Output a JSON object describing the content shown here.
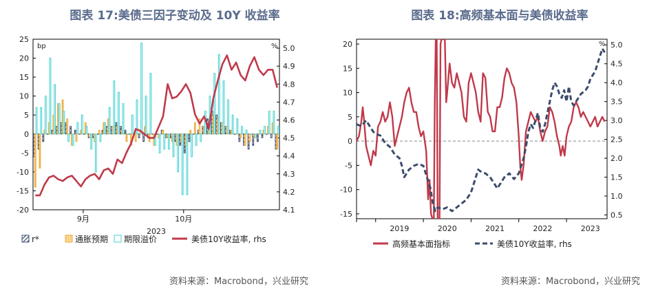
{
  "chart_data": [
    {
      "type": "bar",
      "title": "图表 17:美债三因子变动及 10Y 收益率",
      "y_unit": "bp",
      "y2_unit": "%",
      "ylim": [
        -20,
        25
      ],
      "yticks": [
        -20,
        -15,
        -10,
        -5,
        0,
        5,
        10,
        15,
        20,
        25
      ],
      "y2lim": [
        4.1,
        5.05
      ],
      "y2ticks": [
        4.1,
        4.2,
        4.3,
        4.4,
        4.5,
        4.6,
        4.7,
        4.8,
        4.9,
        5.0
      ],
      "x_month_labels": [
        {
          "label": "9月",
          "index": 11
        },
        {
          "label": "10月",
          "index": 33
        }
      ],
      "x_year_label": "2023",
      "series": [
        {
          "name": "r*",
          "type": "bar",
          "color": "#3b4b6b",
          "values": [
            -6,
            -4,
            -2,
            0,
            1,
            2,
            3,
            3,
            2,
            1,
            0,
            0,
            -1,
            -1,
            0,
            1,
            2,
            2,
            3,
            2,
            1,
            0,
            0,
            -1,
            -2,
            -1,
            0,
            0,
            1,
            -1,
            -1,
            -2,
            -3,
            -5,
            -2,
            0,
            1,
            2,
            4,
            6,
            5,
            3,
            2,
            1,
            0,
            -2,
            -3,
            -4,
            -3,
            -2,
            -1,
            0,
            -1,
            -4
          ]
        },
        {
          "name": "通胀预期",
          "type": "bar",
          "color": "#f0a830",
          "values": [
            -14,
            -9,
            1,
            3,
            5,
            8,
            9,
            4,
            -3,
            -2,
            1,
            3,
            -1,
            -2,
            1,
            3,
            4,
            2,
            2,
            1,
            -2,
            -3,
            -2,
            1,
            2,
            -2,
            -3,
            -1,
            1,
            -1,
            -2,
            -3,
            -2,
            -3,
            1,
            3,
            4,
            2,
            1,
            5,
            4,
            3,
            2,
            1,
            0,
            -1,
            -3,
            -2,
            -1,
            0,
            1,
            2,
            3,
            -4
          ]
        },
        {
          "name": "期限溢价",
          "type": "bar",
          "color": "#40d0d0",
          "values": [
            7,
            7,
            10,
            20,
            13,
            8,
            6,
            -2,
            -3,
            3,
            5,
            2,
            -4,
            -10,
            -2,
            3,
            7,
            14,
            11,
            8,
            0,
            5,
            9,
            24,
            10,
            16,
            -3,
            -5,
            -4,
            -4,
            -6,
            -10,
            -16,
            -16,
            -6,
            -3,
            -2,
            6,
            10,
            16,
            21,
            14,
            9,
            5,
            4,
            2,
            1,
            0,
            -1,
            1,
            2,
            6,
            6,
            2
          ]
        },
        {
          "name": "美债10Y收益率, rhs",
          "type": "line",
          "axis": "rhs",
          "color": "#c0394a",
          "values": [
            4.18,
            4.18,
            4.24,
            4.28,
            4.29,
            4.27,
            4.26,
            4.28,
            4.29,
            4.26,
            4.23,
            4.27,
            4.29,
            4.3,
            4.27,
            4.32,
            4.33,
            4.3,
            4.38,
            4.36,
            4.42,
            4.47,
            4.55,
            4.54,
            4.52,
            4.5,
            4.5,
            4.56,
            4.62,
            4.8,
            4.72,
            4.73,
            4.76,
            4.8,
            4.75,
            4.63,
            4.58,
            4.62,
            4.55,
            4.72,
            4.82,
            4.91,
            4.96,
            4.88,
            4.92,
            4.85,
            4.82,
            4.9,
            4.95,
            4.88,
            4.85,
            4.88,
            4.88,
            4.78
          ]
        }
      ],
      "source": "资料来源：Macrobond，兴业研究"
    },
    {
      "type": "line",
      "title": "图表 18:高频基本面与美债收益率",
      "y2_unit": "%",
      "ylim": [
        -16,
        21
      ],
      "yticks": [
        -15,
        -10,
        -5,
        0,
        5,
        10,
        15,
        20
      ],
      "y2lim": [
        0.4,
        5.15
      ],
      "y2ticks": [
        0.5,
        1.0,
        1.5,
        2.0,
        2.5,
        3.0,
        3.5,
        4.0,
        4.5,
        5.0
      ],
      "xlim": [
        2018.6,
        2023.85
      ],
      "xticks": [
        2019,
        2020,
        2021,
        2022,
        2023
      ],
      "series": [
        {
          "name": "高频基本面指标",
          "axis": "lhs",
          "color": "#c0394a",
          "style": "solid",
          "points": [
            [
              2018.6,
              0
            ],
            [
              2018.65,
              1
            ],
            [
              2018.7,
              4
            ],
            [
              2018.73,
              7
            ],
            [
              2018.76,
              4
            ],
            [
              2018.8,
              -1
            ],
            [
              2018.85,
              -3
            ],
            [
              2018.9,
              -5
            ],
            [
              2018.95,
              -2
            ],
            [
              2019.0,
              -3
            ],
            [
              2019.05,
              3
            ],
            [
              2019.1,
              4
            ],
            [
              2019.15,
              6
            ],
            [
              2019.2,
              4
            ],
            [
              2019.25,
              5
            ],
            [
              2019.3,
              8
            ],
            [
              2019.35,
              5
            ],
            [
              2019.4,
              -1
            ],
            [
              2019.45,
              1
            ],
            [
              2019.5,
              3
            ],
            [
              2019.55,
              5
            ],
            [
              2019.6,
              8
            ],
            [
              2019.65,
              10
            ],
            [
              2019.7,
              11
            ],
            [
              2019.75,
              8
            ],
            [
              2019.8,
              6
            ],
            [
              2019.85,
              6
            ],
            [
              2019.9,
              3
            ],
            [
              2019.95,
              1
            ],
            [
              2020.0,
              2
            ],
            [
              2020.03,
              0
            ],
            [
              2020.06,
              -2
            ],
            [
              2020.1,
              -12
            ],
            [
              2020.13,
              -8
            ],
            [
              2020.16,
              -15
            ],
            [
              2020.19,
              -16
            ],
            [
              2020.22,
              -16
            ],
            [
              2020.24,
              8
            ],
            [
              2020.26,
              21
            ],
            [
              2020.28,
              21
            ],
            [
              2020.3,
              -16
            ],
            [
              2020.32,
              -16
            ],
            [
              2020.34,
              -16
            ],
            [
              2020.36,
              20
            ],
            [
              2020.38,
              21
            ],
            [
              2020.4,
              21
            ],
            [
              2020.42,
              21
            ],
            [
              2020.45,
              21
            ],
            [
              2020.48,
              8
            ],
            [
              2020.5,
              10
            ],
            [
              2020.55,
              16
            ],
            [
              2020.6,
              12
            ],
            [
              2020.65,
              11
            ],
            [
              2020.7,
              14
            ],
            [
              2020.75,
              12
            ],
            [
              2020.8,
              10
            ],
            [
              2020.85,
              5
            ],
            [
              2020.9,
              4
            ],
            [
              2020.95,
              12
            ],
            [
              2021.0,
              14
            ],
            [
              2021.05,
              12
            ],
            [
              2021.1,
              10
            ],
            [
              2021.15,
              6
            ],
            [
              2021.2,
              4
            ],
            [
              2021.25,
              14
            ],
            [
              2021.3,
              13
            ],
            [
              2021.35,
              6
            ],
            [
              2021.4,
              5
            ],
            [
              2021.45,
              2
            ],
            [
              2021.5,
              2
            ],
            [
              2021.55,
              7
            ],
            [
              2021.6,
              7
            ],
            [
              2021.65,
              9
            ],
            [
              2021.7,
              13
            ],
            [
              2021.75,
              15
            ],
            [
              2021.8,
              14
            ],
            [
              2021.85,
              12
            ],
            [
              2021.9,
              11
            ],
            [
              2021.95,
              8
            ],
            [
              2022.0,
              1
            ],
            [
              2022.03,
              -5
            ],
            [
              2022.06,
              -8
            ],
            [
              2022.1,
              -5
            ],
            [
              2022.15,
              2
            ],
            [
              2022.2,
              4
            ],
            [
              2022.25,
              6
            ],
            [
              2022.3,
              5
            ],
            [
              2022.35,
              4
            ],
            [
              2022.4,
              5
            ],
            [
              2022.45,
              2
            ],
            [
              2022.5,
              0
            ],
            [
              2022.55,
              2
            ],
            [
              2022.6,
              3
            ],
            [
              2022.65,
              7
            ],
            [
              2022.7,
              6
            ],
            [
              2022.75,
              4
            ],
            [
              2022.8,
              1
            ],
            [
              2022.85,
              -1
            ],
            [
              2022.88,
              -3
            ],
            [
              2022.92,
              -1
            ],
            [
              2022.96,
              -3
            ],
            [
              2023.0,
              1
            ],
            [
              2023.05,
              3
            ],
            [
              2023.1,
              4
            ],
            [
              2023.15,
              7
            ],
            [
              2023.2,
              8
            ],
            [
              2023.25,
              7
            ],
            [
              2023.3,
              5
            ],
            [
              2023.35,
              6
            ],
            [
              2023.4,
              5
            ],
            [
              2023.45,
              4
            ],
            [
              2023.5,
              3
            ],
            [
              2023.55,
              4
            ],
            [
              2023.6,
              5
            ],
            [
              2023.65,
              3
            ],
            [
              2023.7,
              4
            ],
            [
              2023.75,
              5
            ],
            [
              2023.8,
              4
            ]
          ]
        },
        {
          "name": "美债10Y收益率, rhs",
          "axis": "rhs",
          "color": "#3b4b6b",
          "style": "dashed",
          "points": [
            [
              2018.6,
              2.9
            ],
            [
              2018.7,
              2.85
            ],
            [
              2018.8,
              3.0
            ],
            [
              2018.9,
              2.8
            ],
            [
              2018.95,
              2.7
            ],
            [
              2019.0,
              2.65
            ],
            [
              2019.1,
              2.6
            ],
            [
              2019.2,
              2.4
            ],
            [
              2019.3,
              2.3
            ],
            [
              2019.4,
              2.1
            ],
            [
              2019.5,
              2.0
            ],
            [
              2019.55,
              1.8
            ],
            [
              2019.6,
              1.5
            ],
            [
              2019.65,
              1.6
            ],
            [
              2019.7,
              1.7
            ],
            [
              2019.8,
              1.8
            ],
            [
              2019.9,
              1.85
            ],
            [
              2020.0,
              1.8
            ],
            [
              2020.05,
              1.6
            ],
            [
              2020.1,
              1.4
            ],
            [
              2020.15,
              1.2
            ],
            [
              2020.2,
              0.8
            ],
            [
              2020.25,
              0.6
            ],
            [
              2020.3,
              0.7
            ],
            [
              2020.4,
              0.65
            ],
            [
              2020.5,
              0.7
            ],
            [
              2020.6,
              0.6
            ],
            [
              2020.7,
              0.7
            ],
            [
              2020.8,
              0.8
            ],
            [
              2020.9,
              0.9
            ],
            [
              2021.0,
              1.1
            ],
            [
              2021.05,
              1.3
            ],
            [
              2021.1,
              1.5
            ],
            [
              2021.15,
              1.7
            ],
            [
              2021.2,
              1.65
            ],
            [
              2021.3,
              1.6
            ],
            [
              2021.4,
              1.5
            ],
            [
              2021.5,
              1.3
            ],
            [
              2021.55,
              1.2
            ],
            [
              2021.6,
              1.3
            ],
            [
              2021.7,
              1.5
            ],
            [
              2021.8,
              1.6
            ],
            [
              2021.9,
              1.45
            ],
            [
              2022.0,
              1.6
            ],
            [
              2022.05,
              1.8
            ],
            [
              2022.1,
              2.0
            ],
            [
              2022.15,
              2.3
            ],
            [
              2022.2,
              2.7
            ],
            [
              2022.25,
              2.9
            ],
            [
              2022.3,
              2.8
            ],
            [
              2022.35,
              3.0
            ],
            [
              2022.4,
              3.2
            ],
            [
              2022.45,
              2.8
            ],
            [
              2022.5,
              2.7
            ],
            [
              2022.55,
              2.9
            ],
            [
              2022.6,
              3.2
            ],
            [
              2022.65,
              3.5
            ],
            [
              2022.7,
              3.8
            ],
            [
              2022.75,
              4.0
            ],
            [
              2022.8,
              3.9
            ],
            [
              2022.85,
              3.7
            ],
            [
              2022.9,
              3.6
            ],
            [
              2022.95,
              3.8
            ],
            [
              2023.0,
              3.5
            ],
            [
              2023.05,
              3.9
            ],
            [
              2023.1,
              3.5
            ],
            [
              2023.15,
              3.4
            ],
            [
              2023.2,
              3.5
            ],
            [
              2023.3,
              3.7
            ],
            [
              2023.4,
              3.8
            ],
            [
              2023.45,
              3.9
            ],
            [
              2023.5,
              4.1
            ],
            [
              2023.55,
              4.2
            ],
            [
              2023.6,
              4.3
            ],
            [
              2023.65,
              4.5
            ],
            [
              2023.7,
              4.7
            ],
            [
              2023.75,
              4.9
            ],
            [
              2023.8,
              4.8
            ]
          ]
        }
      ],
      "source": "资料来源：Macrobond，兴业研究"
    }
  ]
}
